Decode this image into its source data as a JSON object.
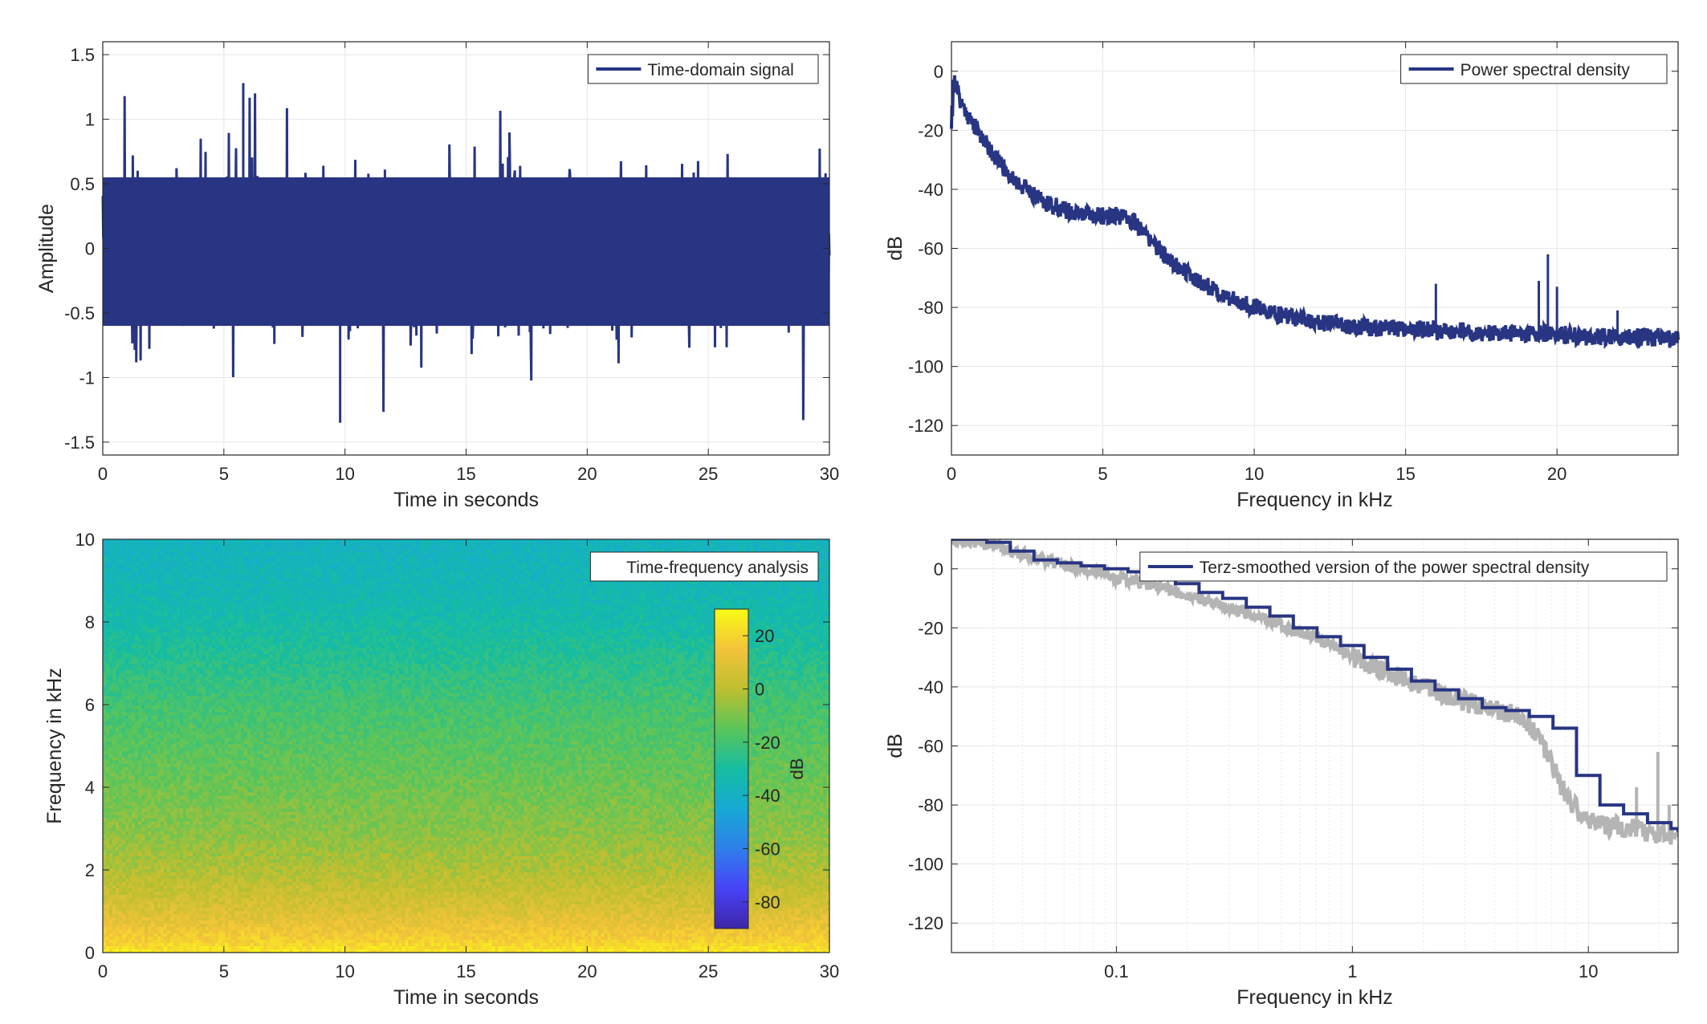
{
  "figure": {
    "background": "#ffffff",
    "line_color": "#283583",
    "gray_color": "#b4b4b4"
  },
  "chart_data": [
    {
      "type": "line",
      "title": "",
      "xlabel": "Time in seconds",
      "ylabel": "Amplitude",
      "xlim": [
        0,
        30
      ],
      "ylim": [
        -1.6,
        1.6
      ],
      "xticks": [
        0,
        5,
        10,
        15,
        20,
        25,
        30
      ],
      "xtick_labels": [
        "0",
        "5",
        "10",
        "15",
        "20",
        "25",
        "30"
      ],
      "yticks": [
        -1.5,
        -1,
        -0.5,
        0,
        0.5,
        1,
        1.5
      ],
      "ytick_labels": [
        "-1.5",
        "-1",
        "-0.5",
        "0",
        "0.5",
        "1",
        "1.5"
      ],
      "grid": true,
      "legend_position": "top-right",
      "series": [
        {
          "name": "Time-domain signal",
          "color": "#283583",
          "description_values": {
            "dense_band": [
              -0.6,
              0.55
            ],
            "max_peak": {
              "x": 5.8,
              "y": 1.28
            },
            "min_peak": {
              "x": 9.8,
              "y": -1.35
            }
          }
        }
      ]
    },
    {
      "type": "line",
      "title": "",
      "xlabel": "Frequency in kHz",
      "ylabel": "dB",
      "xlim": [
        0,
        24
      ],
      "ylim": [
        -130,
        10
      ],
      "xticks": [
        0,
        5,
        10,
        15,
        20
      ],
      "xtick_labels": [
        "0",
        "5",
        "10",
        "15",
        "20"
      ],
      "yticks": [
        0,
        -20,
        -40,
        -60,
        -80,
        -100,
        -120
      ],
      "ytick_labels": [
        "0",
        "-20",
        "-40",
        "-60",
        "-80",
        "-100",
        "-120"
      ],
      "grid": true,
      "legend_position": "top-right",
      "series": [
        {
          "name": "Power spectral density",
          "color": "#283583",
          "x": [
            0,
            0.1,
            0.3,
            0.6,
            1,
            1.5,
            2,
            2.5,
            3,
            4,
            5,
            5.5,
            6,
            6.5,
            7,
            8,
            9,
            10,
            11,
            12,
            13,
            14,
            15,
            16,
            17,
            18,
            19,
            20,
            21,
            22,
            23,
            24
          ],
          "y": [
            -10,
            -3,
            -10,
            -16,
            -22,
            -30,
            -36,
            -40,
            -44,
            -48,
            -49,
            -49,
            -51,
            -56,
            -62,
            -70,
            -76,
            -80,
            -83,
            -85,
            -86,
            -87,
            -87,
            -88,
            -88,
            -89,
            -89,
            -89,
            -90,
            -90,
            -90,
            -91
          ],
          "spikes": [
            {
              "x": 16,
              "y": -72
            },
            {
              "x": 19.4,
              "y": -71
            },
            {
              "x": 19.7,
              "y": -62
            },
            {
              "x": 20.0,
              "y": -73
            },
            {
              "x": 22,
              "y": -81
            }
          ]
        }
      ]
    },
    {
      "type": "heatmap",
      "title": "",
      "xlabel": "Time in seconds",
      "ylabel": "Frequency in kHz",
      "xlim": [
        0,
        30
      ],
      "ylim": [
        0,
        10
      ],
      "xticks": [
        0,
        5,
        10,
        15,
        20,
        25,
        30
      ],
      "xtick_labels": [
        "0",
        "5",
        "10",
        "15",
        "20",
        "25",
        "30"
      ],
      "yticks": [
        0,
        2,
        4,
        6,
        8,
        10
      ],
      "ytick_labels": [
        "0",
        "2",
        "4",
        "6",
        "8",
        "10"
      ],
      "legend_position": "top-right",
      "legend_text": "Time-frequency analysis",
      "colorbar": {
        "label": "dB",
        "range": [
          -90,
          30
        ],
        "ticks": [
          20,
          0,
          -20,
          -40,
          -60,
          -80
        ],
        "tick_labels": [
          "20",
          "0",
          "-20",
          "-40",
          "-60",
          "-80"
        ],
        "colormap": [
          "#3e26a8",
          "#4743f8",
          "#2f7feb",
          "#16a9d5",
          "#15bda1",
          "#5ac55a",
          "#bdbf2f",
          "#f3c33a",
          "#f9fb15"
        ]
      },
      "level_profile": {
        "freq_khz": [
          0,
          0.3,
          1,
          2,
          3,
          4,
          5,
          6,
          7,
          8,
          9,
          10
        ],
        "db": [
          25,
          18,
          8,
          -2,
          -8,
          -12,
          -16,
          -20,
          -26,
          -32,
          -36,
          -38
        ]
      }
    },
    {
      "type": "line",
      "title": "",
      "xlabel": "Frequency in kHz",
      "ylabel": "dB",
      "x_scale": "log",
      "xlim": [
        0.02,
        24
      ],
      "ylim": [
        -130,
        10
      ],
      "xticks": [
        0.1,
        1,
        10
      ],
      "xtick_labels": [
        "0.1",
        "1",
        "10"
      ],
      "yticks": [
        0,
        -20,
        -40,
        -60,
        -80,
        -100,
        -120
      ],
      "ytick_labels": [
        "0",
        "-20",
        "-40",
        "-60",
        "-80",
        "-100",
        "-120"
      ],
      "grid": true,
      "legend_position": "top-right",
      "series": [
        {
          "name": "",
          "color": "#b4b4b4",
          "x": [
            0.02,
            0.03,
            0.05,
            0.08,
            0.1,
            0.15,
            0.2,
            0.3,
            0.5,
            0.8,
            1,
            1.5,
            2,
            3,
            4,
            5,
            5.5,
            6,
            7,
            8,
            9,
            10,
            12,
            15,
            18,
            20,
            24
          ],
          "y": [
            10,
            8,
            3,
            -1,
            -3,
            -6,
            -9,
            -13,
            -19,
            -25,
            -30,
            -36,
            -40,
            -45,
            -48,
            -49,
            -52,
            -56,
            -66,
            -76,
            -82,
            -85,
            -87,
            -88,
            -89,
            -90,
            -90
          ],
          "spikes": [
            {
              "x": 16,
              "y": -74
            },
            {
              "x": 19.7,
              "y": -62
            },
            {
              "x": 22,
              "y": -80
            }
          ]
        },
        {
          "name": "Terz-smoothed version of the power spectral density",
          "color": "#283583",
          "x": [
            0.02,
            0.0224,
            0.0282,
            0.0355,
            0.0447,
            0.0562,
            0.0708,
            0.0891,
            0.112,
            0.141,
            0.178,
            0.224,
            0.282,
            0.355,
            0.447,
            0.562,
            0.708,
            0.891,
            1.12,
            1.41,
            1.78,
            2.24,
            2.82,
            3.55,
            4.47,
            5.62,
            7.08,
            8.91,
            11.2,
            14.1,
            17.8,
            22.4,
            24
          ],
          "y": [
            10,
            10,
            9,
            6,
            3,
            2,
            1,
            0,
            -1,
            -3,
            -5,
            -8,
            -10,
            -13,
            -16,
            -20,
            -23,
            -26,
            -30,
            -34,
            -38,
            -41,
            -44,
            -47,
            -48,
            -50,
            -54,
            -70,
            -80,
            -83,
            -86,
            -88,
            -89
          ]
        }
      ]
    }
  ]
}
